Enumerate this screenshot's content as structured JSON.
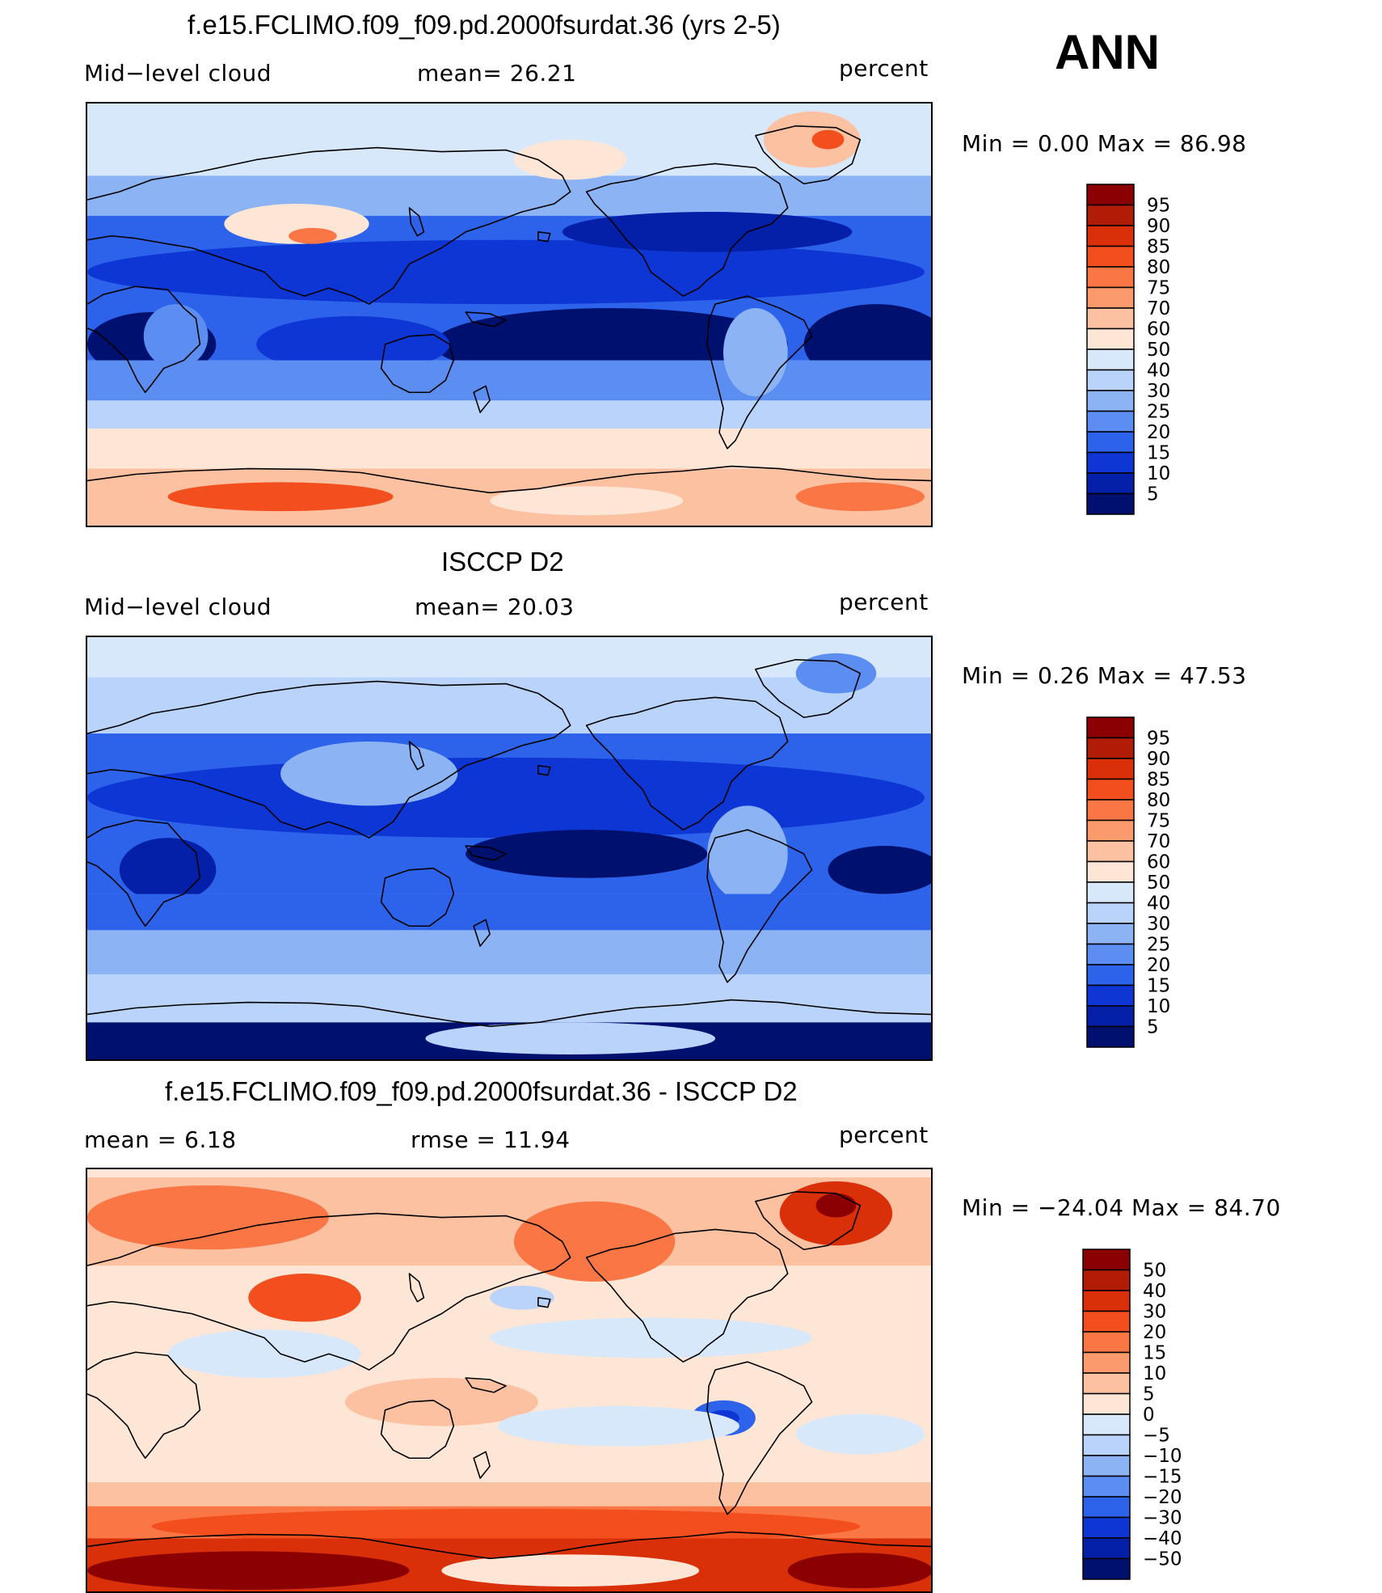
{
  "season": "ANN",
  "panels": [
    {
      "title": "f.e15.FCLIMO.f09_f09.pd.2000fsurdat.36 (yrs 2-5)",
      "left_label": "Mid−level  cloud",
      "center_label": "mean=   26.21",
      "right_label": "percent",
      "minmax": "Min  =    0.00  Max  =   86.98",
      "kind": "model"
    },
    {
      "title": "ISCCP D2",
      "left_label": "Mid−level  cloud",
      "center_label": "mean=   20.03",
      "right_label": "percent",
      "minmax": "Min  =    0.26  Max  =   47.53",
      "kind": "obs"
    },
    {
      "title": "f.e15.FCLIMO.f09_f09.pd.2000fsurdat.36 - ISCCP D2",
      "left_label": "mean  =     6.18",
      "center_label": "rmse  =    11.94",
      "right_label": "percent",
      "minmax": "Min  = −24.04  Max  =    84.70",
      "kind": "diff"
    }
  ],
  "colorbars": {
    "absolute": {
      "labels": [
        "95",
        "90",
        "85",
        "80",
        "75",
        "70",
        "60",
        "50",
        "40",
        "30",
        "25",
        "20",
        "15",
        "10",
        "5"
      ],
      "colors": [
        "#8b0000",
        "#b01c05",
        "#d9300a",
        "#f24e1e",
        "#fa7644",
        "#fb9a6d",
        "#fcc1a1",
        "#fde6d6",
        "#d8e8fb",
        "#b9d3fa",
        "#8cb4f5",
        "#5b8ef0",
        "#2d62ea",
        "#0d36d4",
        "#0520a8",
        "#00106e"
      ]
    },
    "difference": {
      "labels": [
        "50",
        "40",
        "30",
        "20",
        "15",
        "10",
        "5",
        "0",
        "−5",
        "−10",
        "−15",
        "−20",
        "−30",
        "−40",
        "−50"
      ],
      "colors": [
        "#8b0000",
        "#b01c05",
        "#d9300a",
        "#f24e1e",
        "#fa7644",
        "#fb9a6d",
        "#fcc1a1",
        "#fde6d6",
        "#d8e8fb",
        "#b9d3fa",
        "#8cb4f5",
        "#5b8ef0",
        "#2d62ea",
        "#0d36d4",
        "#0520a8",
        "#00106e"
      ]
    }
  }
}
